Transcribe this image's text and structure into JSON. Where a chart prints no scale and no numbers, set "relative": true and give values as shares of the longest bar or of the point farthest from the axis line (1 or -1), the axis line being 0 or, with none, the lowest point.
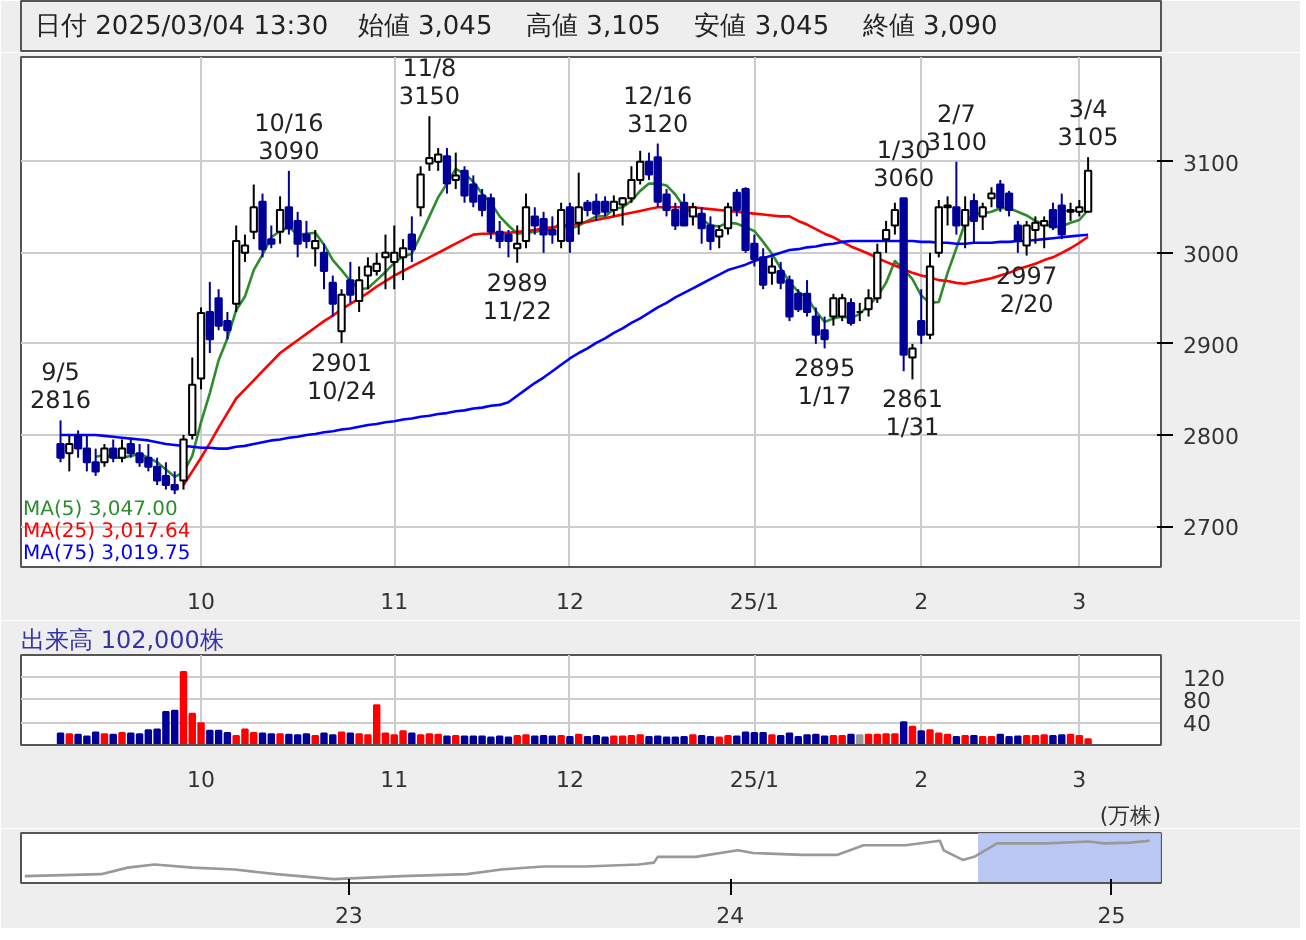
{
  "chart_data": [
    {
      "type": "other",
      "annotations": [
        "日付 2025/03/04 13:30",
        "始値 3,045",
        "高値 3,105",
        "安値 3,045",
        "終値 3,090"
      ]
    },
    {
      "type": "candlestick",
      "categories": [
        null,
        null,
        null,
        null,
        null,
        null,
        null,
        null,
        null,
        null,
        null,
        null,
        null,
        null,
        null,
        null,
        "10",
        null,
        null,
        null,
        null,
        null,
        null,
        null,
        null,
        null,
        null,
        null,
        null,
        null,
        null,
        null,
        null,
        null,
        null,
        null,
        null,
        null,
        "11",
        null,
        null,
        null,
        null,
        null,
        null,
        null,
        null,
        null,
        null,
        null,
        null,
        null,
        null,
        null,
        null,
        null,
        null,
        null,
        "12",
        null,
        null,
        null,
        null,
        null,
        null,
        null,
        null,
        null,
        null,
        null,
        null,
        null,
        null,
        null,
        null,
        null,
        null,
        null,
        null,
        "25/1",
        null,
        null,
        null,
        null,
        null,
        null,
        null,
        null,
        null,
        null,
        null,
        null,
        null,
        null,
        null,
        null,
        null,
        null,
        "2",
        null,
        null,
        null,
        null,
        null,
        null,
        null,
        null,
        null,
        null,
        null,
        null,
        null,
        null,
        null,
        null,
        null,
        "3",
        null
      ],
      "ohlc": [
        [
          2790,
          2816,
          2770,
          2775
        ],
        [
          2780,
          2800,
          2760,
          2790
        ],
        [
          2800,
          2805,
          2775,
          2785
        ],
        [
          2785,
          2800,
          2760,
          2770
        ],
        [
          2770,
          2785,
          2755,
          2760
        ],
        [
          2770,
          2790,
          2765,
          2785
        ],
        [
          2785,
          2795,
          2770,
          2775
        ],
        [
          2775,
          2795,
          2770,
          2785
        ],
        [
          2790,
          2795,
          2775,
          2780
        ],
        [
          2780,
          2790,
          2765,
          2770
        ],
        [
          2775,
          2790,
          2760,
          2765
        ],
        [
          2765,
          2775,
          2745,
          2750
        ],
        [
          2755,
          2770,
          2740,
          2745
        ],
        [
          2745,
          2760,
          2735,
          2740
        ],
        [
          2750,
          2800,
          2740,
          2795
        ],
        [
          2800,
          2885,
          2795,
          2855
        ],
        [
          2862,
          2940,
          2850,
          2934
        ],
        [
          2935,
          2968,
          2890,
          2905
        ],
        [
          2950,
          2960,
          2915,
          2920
        ],
        [
          2925,
          2935,
          2905,
          2915
        ],
        [
          2944,
          3030,
          2935,
          3013
        ],
        [
          3000,
          3020,
          2990,
          3008
        ],
        [
          3023,
          3075,
          3015,
          3050
        ],
        [
          3056,
          3065,
          2995,
          3004
        ],
        [
          3015,
          3030,
          3005,
          3010
        ],
        [
          3023,
          3062,
          3010,
          3047
        ],
        [
          3050,
          3090,
          3020,
          3027
        ],
        [
          3035,
          3045,
          2995,
          3010
        ],
        [
          3020,
          3035,
          3005,
          3013
        ],
        [
          3005,
          3025,
          2985,
          3013
        ],
        [
          3000,
          3010,
          2960,
          2980
        ],
        [
          2967,
          2975,
          2930,
          2944
        ],
        [
          2914,
          2960,
          2901,
          2954
        ],
        [
          2970,
          2990,
          2945,
          2954
        ],
        [
          2947,
          2985,
          2935,
          2970
        ],
        [
          2975,
          2995,
          2960,
          2985
        ],
        [
          2980,
          3000,
          2975,
          2988
        ],
        [
          2995,
          3020,
          2960,
          3000
        ],
        [
          2990,
          3030,
          2960,
          3000
        ],
        [
          2995,
          3015,
          2970,
          3005
        ],
        [
          3020,
          3040,
          2990,
          3004
        ],
        [
          3050,
          3095,
          3040,
          3086
        ],
        [
          3098,
          3150,
          3090,
          3104
        ],
        [
          3100,
          3115,
          3090,
          3108
        ],
        [
          3106,
          3115,
          3065,
          3076
        ],
        [
          3080,
          3110,
          3070,
          3085
        ],
        [
          3090,
          3095,
          3055,
          3063
        ],
        [
          3075,
          3085,
          3050,
          3056
        ],
        [
          3063,
          3070,
          3040,
          3047
        ],
        [
          3060,
          3065,
          3015,
          3023
        ],
        [
          3023,
          3035,
          3005,
          3013
        ],
        [
          3020,
          3025,
          2995,
          3013
        ],
        [
          3005,
          3030,
          2989,
          3010
        ],
        [
          3013,
          3065,
          3005,
          3050
        ],
        [
          3040,
          3050,
          3020,
          3030
        ],
        [
          3037,
          3045,
          3000,
          3020
        ],
        [
          3025,
          3040,
          3010,
          3020
        ],
        [
          3013,
          3055,
          3005,
          3047
        ],
        [
          3050,
          3055,
          3000,
          3013
        ],
        [
          3033,
          3088,
          3020,
          3050
        ],
        [
          3055,
          3058,
          3040,
          3047
        ],
        [
          3056,
          3065,
          3035,
          3043
        ],
        [
          3056,
          3062,
          3040,
          3045
        ],
        [
          3047,
          3063,
          3040,
          3056
        ],
        [
          3053,
          3061,
          3030,
          3060
        ],
        [
          3060,
          3095,
          3055,
          3080
        ],
        [
          3080,
          3112,
          3075,
          3100
        ],
        [
          3100,
          3110,
          3080,
          3086
        ],
        [
          3105,
          3120,
          3050,
          3056
        ],
        [
          3064,
          3070,
          3040,
          3047
        ],
        [
          3047,
          3055,
          3025,
          3030
        ],
        [
          3055,
          3065,
          3030,
          3030
        ],
        [
          3040,
          3055,
          3030,
          3050
        ],
        [
          3043,
          3050,
          3010,
          3027
        ],
        [
          3030,
          3040,
          3003,
          3013
        ],
        [
          3018,
          3030,
          3005,
          3025
        ],
        [
          3027,
          3055,
          3020,
          3050
        ],
        [
          3066,
          3070,
          3040,
          3047
        ],
        [
          3070,
          3072,
          3000,
          3003
        ],
        [
          3010,
          3020,
          2985,
          2993
        ],
        [
          2995,
          3005,
          2960,
          2965
        ],
        [
          2978,
          2995,
          2965,
          2985
        ],
        [
          2980,
          2990,
          2960,
          2967
        ],
        [
          2970,
          2975,
          2925,
          2930
        ],
        [
          2955,
          2960,
          2935,
          2938
        ],
        [
          2955,
          2970,
          2930,
          2935
        ],
        [
          2930,
          2940,
          2900,
          2910
        ],
        [
          2915,
          2930,
          2895,
          2905
        ],
        [
          2930,
          2955,
          2920,
          2950
        ],
        [
          2930,
          2955,
          2925,
          2950
        ],
        [
          2945,
          2950,
          2920,
          2923
        ],
        [
          2935,
          2945,
          2925,
          2935
        ],
        [
          2938,
          2960,
          2930,
          2950
        ],
        [
          2950,
          3010,
          2945,
          3000
        ],
        [
          3015,
          3035,
          3000,
          3025
        ],
        [
          3030,
          3055,
          3020,
          3047
        ],
        [
          3060,
          3060,
          2870,
          2888
        ],
        [
          2885,
          2900,
          2861,
          2895
        ],
        [
          2925,
          2960,
          2900,
          2910
        ],
        [
          2910,
          3000,
          2905,
          2985
        ],
        [
          3000,
          3058,
          2995,
          3050
        ],
        [
          3050,
          3062,
          3030,
          3052
        ],
        [
          3050,
          3100,
          3020,
          3030
        ],
        [
          3030,
          3062,
          3005,
          3047
        ],
        [
          3057,
          3065,
          3010,
          3035
        ],
        [
          3040,
          3055,
          3025,
          3050
        ],
        [
          3060,
          3072,
          3050,
          3065
        ],
        [
          3075,
          3080,
          3045,
          3050
        ],
        [
          3065,
          3068,
          3040,
          3047
        ],
        [
          3030,
          3035,
          3000,
          3013
        ],
        [
          3008,
          3035,
          2997,
          3030
        ],
        [
          3025,
          3040,
          3010,
          3033
        ],
        [
          3030,
          3040,
          3005,
          3035
        ],
        [
          3047,
          3055,
          3025,
          3028
        ],
        [
          3052,
          3065,
          3015,
          3020
        ],
        [
          3045,
          3055,
          3035,
          3047
        ],
        [
          3045,
          3058,
          3040,
          3050
        ],
        [
          3045,
          3105,
          3045,
          3090
        ]
      ],
      "colors": [
        "#000099",
        "#ffffff",
        "#000099",
        "#000099",
        "#000099",
        "#ffffff",
        "#000099",
        "#ffffff",
        "#000099",
        "#000099",
        "#000099",
        "#000099",
        "#000099",
        "#000099",
        "#ffffff",
        "#ffffff",
        "#ffffff",
        "#000099",
        "#000099",
        "#000099",
        "#ffffff",
        "#ffffff",
        "#ffffff",
        "#000099",
        "#000099",
        "#ffffff",
        "#000099",
        "#000099",
        "#000099",
        "#ffffff",
        "#000099",
        "#000099",
        "#ffffff",
        "#000099",
        "#ffffff",
        "#ffffff",
        "#ffffff",
        "#ffffff",
        "#ffffff",
        "#ffffff",
        "#000099",
        "#ffffff",
        "#ffffff",
        "#ffffff",
        "#000099",
        "#ffffff",
        "#000099",
        "#000099",
        "#000099",
        "#000099",
        "#000099",
        "#000099",
        "#ffffff",
        "#ffffff",
        "#000099",
        "#000099",
        "#000099",
        "#ffffff",
        "#000099",
        "#ffffff",
        "#000099",
        "#000099",
        "#000099",
        "#ffffff",
        "#ffffff",
        "#ffffff",
        "#ffffff",
        "#000099",
        "#000099",
        "#000099",
        "#000099",
        "#000099",
        "#ffffff",
        "#000099",
        "#000099",
        "#ffffff",
        "#ffffff",
        "#000099",
        "#000099",
        "#000099",
        "#000099",
        "#ffffff",
        "#000099",
        "#000099",
        "#000099",
        "#000099",
        "#000099",
        "#000099",
        "#ffffff",
        "#ffffff",
        "#000099",
        "#000000",
        "#ffffff",
        "#ffffff",
        "#ffffff",
        "#ffffff",
        "#000099",
        "#ffffff",
        "#000099",
        "#ffffff",
        "#ffffff",
        "#ffffff",
        "#000099",
        "#ffffff",
        "#000099",
        "#ffffff",
        "#ffffff",
        "#000099",
        "#000099",
        "#000099",
        "#ffffff",
        "#ffffff",
        "#ffffff",
        "#000099",
        "#000099",
        "#ffffff",
        "#ffffff",
        "#ffffff"
      ],
      "series": [
        {
          "name": "MA(5)  3,047.00",
          "type": "line",
          "color": "#2e8b2e",
          "values": [
            null,
            null,
            null,
            null,
            2776,
            2778,
            2775,
            2775,
            2777,
            2779,
            2775,
            2770,
            2762,
            2754,
            2759,
            2777,
            2814,
            2846,
            2882,
            2906,
            2937,
            2952,
            2981,
            2998,
            3017,
            3024,
            3028,
            3020,
            3021,
            3022,
            3009,
            2992,
            2981,
            2969,
            2960,
            2961,
            2970,
            2979,
            2989,
            2996,
            2999,
            3019,
            3040,
            3061,
            3076,
            3092,
            3087,
            3078,
            3065,
            3055,
            3040,
            3030,
            3021,
            3022,
            3023,
            3025,
            3026,
            3033,
            3026,
            3030,
            3035,
            3040,
            3040,
            3048,
            3050,
            3057,
            3068,
            3076,
            3076,
            3074,
            3064,
            3050,
            3043,
            3037,
            3030,
            3029,
            3033,
            3032,
            3028,
            3024,
            3012,
            2999,
            2983,
            2968,
            2957,
            2951,
            2936,
            2924,
            2928,
            2930,
            2928,
            2933,
            2942,
            2952,
            2967,
            2991,
            2982,
            2971,
            2953,
            2945,
            2946,
            2978,
            3005,
            3033,
            3043,
            3043,
            3045,
            3049,
            3049,
            3045,
            3041,
            3035,
            3032,
            3028,
            3029,
            3033,
            3036,
            3047.0
          ]
        },
        {
          "name": "MA(25)  3,017.64",
          "type": "line",
          "color": "#ff0000",
          "values": [
            null,
            null,
            null,
            null,
            null,
            null,
            null,
            null,
            null,
            null,
            null,
            null,
            null,
            null,
            2745,
            2760,
            2775,
            2791,
            2808,
            2824,
            2840,
            2850,
            2860,
            2870,
            2880,
            2890,
            2897,
            2904,
            2911,
            2918,
            2925,
            2931,
            2938,
            2944,
            2950,
            2956,
            2963,
            2969,
            2975,
            2980,
            2985,
            2990,
            2995,
            3000,
            3005,
            3010,
            3015,
            3020,
            3021,
            3021,
            3022,
            3022,
            3023,
            3024,
            3025,
            3027,
            3028,
            3029,
            3030,
            3032,
            3034,
            3036,
            3038,
            3040,
            3042,
            3044,
            3046,
            3048,
            3050,
            3050,
            3050,
            3050,
            3050,
            3049,
            3048,
            3047,
            3046,
            3045,
            3044,
            3043,
            3042,
            3041,
            3040,
            3040,
            3035,
            3031,
            3026,
            3021,
            3017,
            3012,
            3007,
            3003,
            2999,
            2994,
            2990,
            2986,
            2982,
            2978,
            2975,
            2973,
            2970,
            2969,
            2967,
            2966,
            2968,
            2970,
            2972,
            2975,
            2978,
            2982,
            2985,
            2988,
            2992,
            2995,
            3000,
            3005,
            3011,
            3017.64
          ]
        },
        {
          "name": "MA(75)  3,019.75",
          "type": "line",
          "color": "#0000ff",
          "values": [
            2800,
            2800,
            2800,
            2800,
            2800,
            2799,
            2798,
            2797,
            2796,
            2795,
            2794,
            2792,
            2790,
            2789,
            2788,
            2787,
            2786,
            2786,
            2785,
            2785,
            2787,
            2788,
            2790,
            2792,
            2794,
            2795,
            2797,
            2798,
            2800,
            2801,
            2803,
            2804,
            2806,
            2807,
            2809,
            2811,
            2812,
            2814,
            2815,
            2817,
            2818,
            2820,
            2821,
            2823,
            2824,
            2826,
            2827,
            2829,
            2830,
            2832,
            2833,
            2836,
            2843,
            2850,
            2857,
            2863,
            2870,
            2877,
            2884,
            2890,
            2895,
            2901,
            2906,
            2912,
            2917,
            2923,
            2928,
            2934,
            2940,
            2945,
            2951,
            2956,
            2961,
            2966,
            2971,
            2976,
            2981,
            2984,
            2987,
            2991,
            2994,
            2997,
            3000,
            3003,
            3004,
            3006,
            3007,
            3009,
            3010,
            3012,
            3013,
            3013,
            3013,
            3013,
            3013,
            3013,
            3013,
            3013,
            3012,
            3012,
            3011,
            3011,
            3010,
            3010,
            3011,
            3011,
            3011,
            3012,
            3012,
            3013,
            3013,
            3014,
            3015,
            3016,
            3017,
            3018,
            3019,
            3019.75
          ]
        }
      ],
      "ylim": [
        2655,
        3215
      ],
      "yticks": [
        2700,
        2800,
        2900,
        3000,
        3100
      ],
      "grid": true,
      "annotations": [
        {
          "text": "9/5\n2816",
          "y": 2816
        },
        {
          "text": "10/16\n3090",
          "y": 3090
        },
        {
          "text": "11/8\n3150",
          "y": 3150
        },
        {
          "text": "12/16\n3120",
          "y": 3120
        },
        {
          "text": "1/30\n3060",
          "y": 3060
        },
        {
          "text": "2/7\n3100",
          "y": 3100
        },
        {
          "text": "3/4\n3105",
          "y": 3105
        },
        {
          "text": "2901\n10/24",
          "y": 2901
        },
        {
          "text": "2989\n11/22",
          "y": 2989
        },
        {
          "text": "2895\n1/17",
          "y": 2895
        },
        {
          "text": "2861\n1/31",
          "y": 2861
        },
        {
          "text": "2997\n2/20",
          "y": 2997
        }
      ]
    },
    {
      "type": "bar",
      "categories": [
        null,
        null,
        null,
        null,
        null,
        null,
        null,
        null,
        null,
        null,
        null,
        null,
        null,
        null,
        null,
        null,
        "10",
        null,
        null,
        null,
        null,
        null,
        null,
        null,
        null,
        null,
        null,
        null,
        null,
        null,
        null,
        null,
        null,
        null,
        null,
        null,
        null,
        null,
        "11",
        null,
        null,
        null,
        null,
        null,
        null,
        null,
        null,
        null,
        null,
        null,
        null,
        null,
        null,
        null,
        null,
        null,
        null,
        null,
        "12",
        null,
        null,
        null,
        null,
        null,
        null,
        null,
        null,
        null,
        null,
        null,
        null,
        null,
        null,
        null,
        null,
        null,
        null,
        null,
        null,
        "25/1",
        null,
        null,
        null,
        null,
        null,
        null,
        null,
        null,
        null,
        null,
        null,
        null,
        null,
        null,
        null,
        null,
        null,
        null,
        "2",
        null,
        null,
        null,
        null,
        null,
        null,
        null,
        null,
        null,
        null,
        null,
        null,
        null,
        null,
        null,
        null,
        null,
        "3",
        null
      ],
      "values": [
        20,
        19,
        18,
        15,
        22,
        19,
        18,
        21,
        20,
        19,
        26,
        27,
        58,
        60,
        128,
        55,
        38,
        25,
        25,
        21,
        16,
        27,
        21,
        20,
        19,
        19,
        18,
        17,
        19,
        16,
        20,
        17,
        22,
        20,
        19,
        17,
        70,
        20,
        17,
        24,
        20,
        17,
        19,
        18,
        15,
        16,
        15,
        15,
        15,
        13,
        15,
        13,
        16,
        17,
        15,
        16,
        15,
        16,
        14,
        18,
        14,
        16,
        13,
        15,
        15,
        16,
        17,
        14,
        15,
        13,
        13,
        14,
        17,
        16,
        14,
        13,
        16,
        15,
        22,
        21,
        21,
        17,
        16,
        20,
        14,
        17,
        18,
        15,
        16,
        16,
        18,
        17,
        18,
        18,
        19,
        19,
        40,
        32,
        24,
        26,
        20,
        18,
        14,
        16,
        16,
        14,
        14,
        18,
        14,
        15,
        16,
        16,
        17,
        16,
        17,
        18,
        16,
        10.2
      ],
      "colors": [
        "#000099",
        "#ff0000",
        "#000099",
        "#000099",
        "#000099",
        "#ff0000",
        "#000099",
        "#ff0000",
        "#000099",
        "#000099",
        "#000099",
        "#000099",
        "#000099",
        "#000099",
        "#ff0000",
        "#ff0000",
        "#ff0000",
        "#000099",
        "#000099",
        "#000099",
        "#ff0000",
        "#ff0000",
        "#ff0000",
        "#000099",
        "#000099",
        "#ff0000",
        "#000099",
        "#000099",
        "#000099",
        "#ff0000",
        "#000099",
        "#000099",
        "#ff0000",
        "#000099",
        "#ff0000",
        "#ff0000",
        "#ff0000",
        "#ff0000",
        "#ff0000",
        "#ff0000",
        "#000099",
        "#ff0000",
        "#ff0000",
        "#ff0000",
        "#000099",
        "#ff0000",
        "#000099",
        "#000099",
        "#000099",
        "#000099",
        "#000099",
        "#000099",
        "#ff0000",
        "#ff0000",
        "#000099",
        "#000099",
        "#000099",
        "#ff0000",
        "#000099",
        "#ff0000",
        "#000099",
        "#000099",
        "#000099",
        "#ff0000",
        "#ff0000",
        "#ff0000",
        "#ff0000",
        "#000099",
        "#000099",
        "#000099",
        "#000099",
        "#000099",
        "#ff0000",
        "#000099",
        "#000099",
        "#ff0000",
        "#ff0000",
        "#000099",
        "#000099",
        "#000099",
        "#000099",
        "#ff0000",
        "#000099",
        "#000099",
        "#000099",
        "#000099",
        "#000099",
        "#000099",
        "#ff0000",
        "#ff0000",
        "#000099",
        "#999999",
        "#ff0000",
        "#ff0000",
        "#ff0000",
        "#ff0000",
        "#000099",
        "#ff0000",
        "#000099",
        "#ff0000",
        "#ff0000",
        "#ff0000",
        "#000099",
        "#ff0000",
        "#000099",
        "#ff0000",
        "#ff0000",
        "#000099",
        "#000099",
        "#000099",
        "#ff0000",
        "#ff0000",
        "#ff0000",
        "#000099",
        "#000099",
        "#ff0000",
        "#ff0000",
        "#ff0000"
      ],
      "ylim": [
        0,
        158
      ],
      "yticks": [
        40,
        80,
        120
      ],
      "ylabel": "(万株)",
      "grid": true,
      "annotations": [
        "出来高  102,000株"
      ]
    },
    {
      "type": "line",
      "relative": true,
      "color": "#999999",
      "x": [
        2022.15,
        2022.35,
        2022.42,
        2022.49,
        2022.59,
        2022.7,
        2022.81,
        2022.96,
        2023.14,
        2023.31,
        2023.4,
        2023.51,
        2023.62,
        2023.76,
        2023.8,
        2023.81,
        2023.91,
        2024.02,
        2024.06,
        2024.19,
        2024.28,
        2024.35,
        2024.46,
        2024.55,
        2024.56,
        2024.61,
        2024.64,
        2024.7,
        2024.83,
        2024.94,
        2024.98,
        2025.05,
        2025.1
      ],
      "values": [
        0.08,
        0.13,
        0.3,
        0.38,
        0.3,
        0.25,
        0.13,
        0,
        0.08,
        0.13,
        0.25,
        0.33,
        0.33,
        0.38,
        0.43,
        0.58,
        0.58,
        0.75,
        0.68,
        0.63,
        0.63,
        0.88,
        0.88,
        1,
        0.75,
        0.5,
        0.58,
        0.93,
        0.93,
        0.98,
        0.93,
        0.95,
        1
      ],
      "xlim": [
        2022.14,
        2025.13
      ],
      "xticks": [
        {
          "value": 2023,
          "label": "23"
        },
        {
          "value": 2024,
          "label": "24"
        },
        {
          "value": 2025,
          "label": "25"
        }
      ],
      "bands": [
        {
          "axis": "x",
          "from": 2024.65,
          "to": 2025.13,
          "color": "#b3c3f3"
        }
      ]
    }
  ]
}
